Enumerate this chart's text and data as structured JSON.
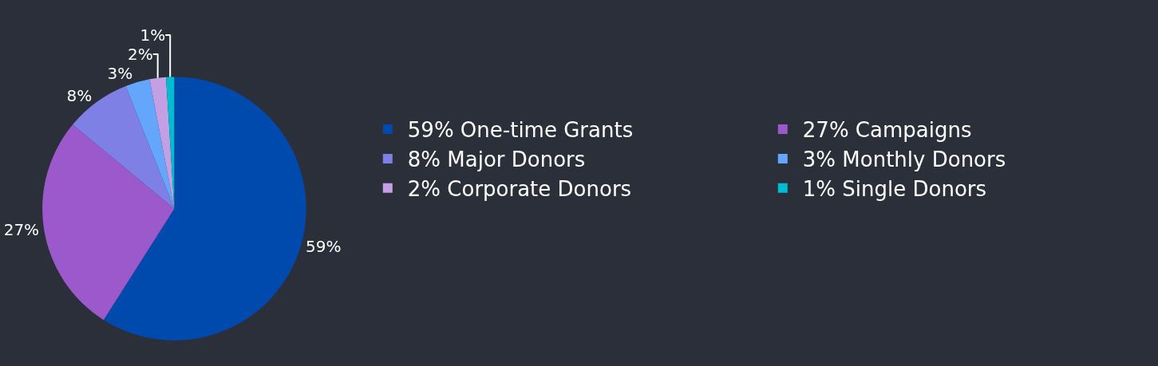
{
  "chart_data": {
    "type": "pie",
    "categories": [
      "59% One-time Grants",
      "27% Campaigns",
      "8% Major Donors",
      "3% Monthly Donors",
      "2% Corporate Donors",
      "1% Single Donors"
    ],
    "values": [
      59,
      27,
      8,
      3,
      2,
      1
    ],
    "value_labels": [
      "59%",
      "27%",
      "8%",
      "3%",
      "2%",
      "1%"
    ],
    "colors": [
      "#004aad",
      "#9b59cc",
      "#7f80e6",
      "#64a6fb",
      "#c49fe3",
      "#00bcd1"
    ],
    "legend": "right"
  }
}
